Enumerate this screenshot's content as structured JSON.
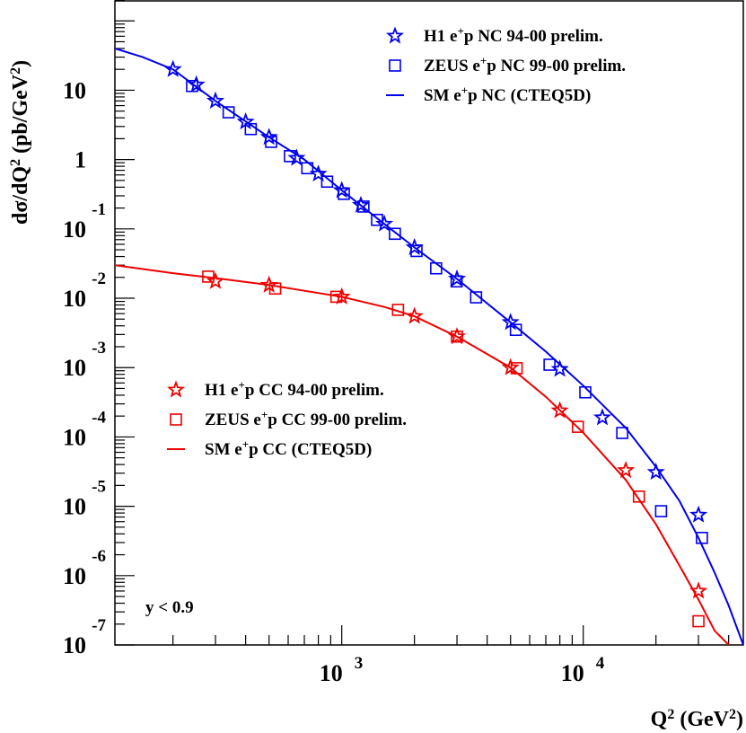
{
  "chart_data": {
    "type": "scatter",
    "xlabel": "Q² (GeV²)",
    "ylabel": "dσ/dQ² (pb/GeV²)",
    "x_scale": "log",
    "y_scale": "log",
    "xlim": [
      115,
      46000
    ],
    "ylim": [
      1e-07,
      200
    ],
    "x_ticks": [
      {
        "value": 1000,
        "base": "10",
        "exp": "3"
      },
      {
        "value": 10000,
        "base": "10",
        "exp": "4"
      }
    ],
    "y_ticks": [
      {
        "value": 10,
        "base": "10",
        "exp": ""
      },
      {
        "value": 1,
        "base": "1",
        "exp": ""
      },
      {
        "value": 0.1,
        "base": "10",
        "exp": "-1"
      },
      {
        "value": 0.01,
        "base": "10",
        "exp": "-2"
      },
      {
        "value": 0.001,
        "base": "10",
        "exp": "-3"
      },
      {
        "value": 0.0001,
        "base": "10",
        "exp": "-4"
      },
      {
        "value": 1e-05,
        "base": "10",
        "exp": "-5"
      },
      {
        "value": 1e-06,
        "base": "10",
        "exp": "-6"
      },
      {
        "value": 1e-07,
        "base": "10",
        "exp": "-7"
      }
    ],
    "annotation": "y < 0.9",
    "series": [
      {
        "name": "H1 e⁺p NC 94-00 prelim.",
        "marker": "star",
        "color": "#0000ee",
        "x": [
          200,
          250,
          300,
          400,
          500,
          650,
          800,
          1000,
          1200,
          1500,
          2000,
          3000,
          5000,
          8000,
          12000,
          20000,
          30000
        ],
        "y": [
          20,
          12,
          7,
          3.5,
          2.1,
          1.05,
          0.62,
          0.36,
          0.22,
          0.118,
          0.054,
          0.019,
          0.0045,
          0.00095,
          0.00019,
          3.1e-05,
          7.5e-06
        ]
      },
      {
        "name": "ZEUS e⁺p NC 99-00 prelim.",
        "marker": "square",
        "color": "#0000ee",
        "x": [
          240,
          340,
          420,
          510,
          610,
          720,
          870,
          1020,
          1230,
          1400,
          1660,
          2040,
          2460,
          2990,
          3600,
          5260,
          7250,
          10200,
          14500,
          21000,
          31000
        ],
        "y": [
          11.5,
          4.8,
          2.75,
          1.8,
          1.12,
          0.75,
          0.48,
          0.32,
          0.21,
          0.135,
          0.085,
          0.048,
          0.027,
          0.0175,
          0.0103,
          0.0035,
          0.0011,
          0.00044,
          0.000114,
          8.5e-06,
          3.5e-06
        ]
      },
      {
        "name": "H1 e⁺p CC 94-00 prelim.",
        "marker": "star",
        "color": "#ee0000",
        "x": [
          300,
          500,
          1000,
          2000,
          3000,
          5000,
          8000,
          15000,
          30000
        ],
        "y": [
          0.0175,
          0.0155,
          0.0105,
          0.0055,
          0.0028,
          0.001,
          0.00024,
          3.3e-05,
          6e-07
        ]
      },
      {
        "name": "ZEUS e⁺p CC 99-00 prelim.",
        "marker": "square",
        "color": "#ee0000",
        "x": [
          280,
          530,
          950,
          1710,
          3000,
          5300,
          9500,
          17000,
          30000
        ],
        "y": [
          0.0205,
          0.0138,
          0.0105,
          0.0068,
          0.0028,
          0.00098,
          0.00014,
          1.38e-05,
          2.2e-07
        ]
      }
    ],
    "curves": [
      {
        "name": "SM e⁺p NC (CTEQ5D)",
        "color": "#0000ee",
        "x": [
          115,
          150,
          200,
          300,
          500,
          700,
          1000,
          1500,
          2000,
          3000,
          5000,
          7000,
          10000,
          15000,
          20000,
          25000,
          30000,
          35000,
          40000,
          46000
        ],
        "y": [
          40,
          30,
          20,
          7,
          2.1,
          1.0,
          0.36,
          0.118,
          0.054,
          0.019,
          0.0045,
          0.0017,
          0.00055,
          0.000135,
          3.7e-05,
          1.2e-05,
          3.5e-06,
          1.1e-06,
          3.7e-07,
          1e-07
        ]
      },
      {
        "name": "SM e⁺p CC (CTEQ5D)",
        "color": "#ee0000",
        "x": [
          115,
          200,
          300,
          500,
          700,
          1000,
          1500,
          2000,
          3000,
          5000,
          7000,
          10000,
          15000,
          20000,
          25000,
          30000,
          35000,
          40000
        ],
        "y": [
          0.03,
          0.023,
          0.0195,
          0.0155,
          0.0128,
          0.0105,
          0.0075,
          0.0055,
          0.0028,
          0.001,
          0.00038,
          0.000115,
          2.4e-05,
          5.5e-06,
          1.4e-06,
          4.5e-07,
          1.6e-07,
          1e-07
        ]
      }
    ],
    "legend": {
      "nc_entries": [
        {
          "symbol": "star",
          "text": "H1 e",
          "sup": "+",
          "rest": "p NC 94-00 prelim."
        },
        {
          "symbol": "square",
          "text": "ZEUS e",
          "sup": "+",
          "rest": "p NC 99-00 prelim."
        },
        {
          "symbol": "line",
          "text": "SM e",
          "sup": "+",
          "rest": "p NC (CTEQ5D)"
        }
      ],
      "cc_entries": [
        {
          "symbol": "star",
          "text": "H1 e",
          "sup": "+",
          "rest": "p CC 94-00 prelim."
        },
        {
          "symbol": "square",
          "text": "ZEUS e",
          "sup": "+",
          "rest": "p CC 99-00 prelim."
        },
        {
          "symbol": "line",
          "text": "SM e",
          "sup": "+",
          "rest": "p CC (CTEQ5D)"
        }
      ]
    }
  }
}
